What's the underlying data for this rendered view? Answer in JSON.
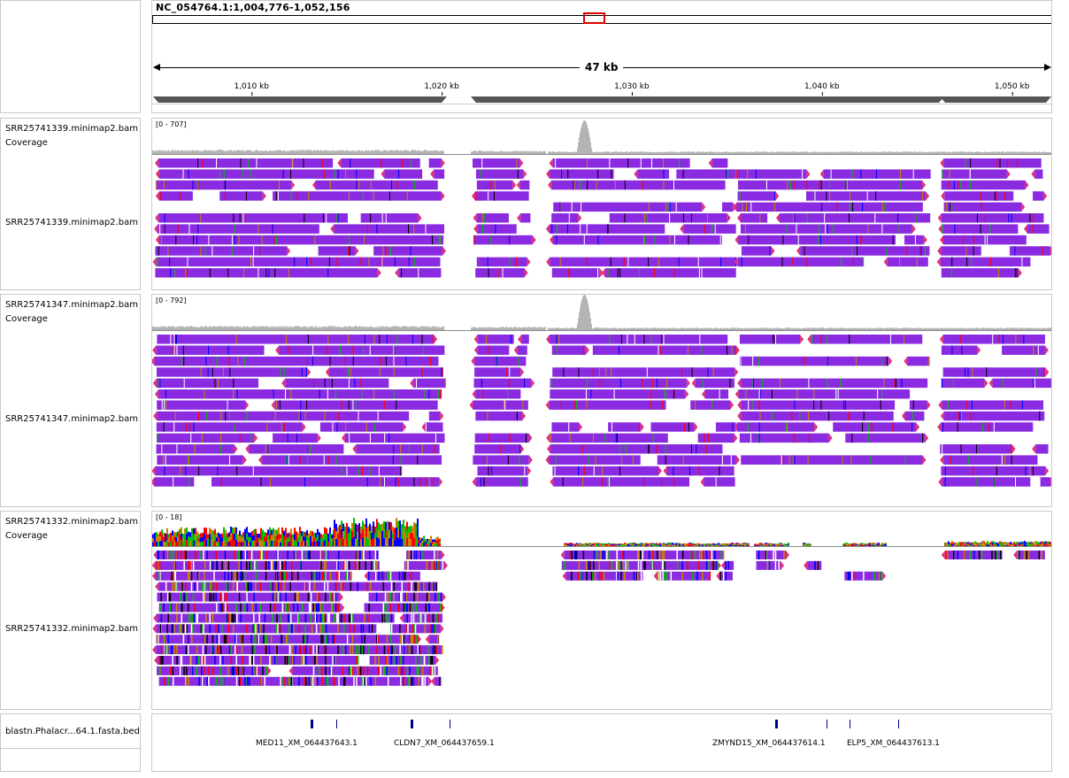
{
  "locus": "NC_054764.1:1,004,776-1,052,156",
  "span_label": "47 kb",
  "ruler_ticks": [
    {
      "label": "1,010 kb",
      "pos": 1010000
    },
    {
      "label": "1,020 kb",
      "pos": 1020000
    },
    {
      "label": "1,030 kb",
      "pos": 1030000
    },
    {
      "label": "1,040 kb",
      "pos": 1040000
    },
    {
      "label": "1,050 kb",
      "pos": 1050000
    }
  ],
  "view_start": 1004776,
  "view_end": 1052156,
  "tracks": [
    {
      "coverage_name": "SRR25741339.minimap2.bam Coverage",
      "alignment_name": "SRR25741339.minimap2.bam",
      "range": "[0 - 707]"
    },
    {
      "coverage_name": "SRR25741347.minimap2.bam Coverage",
      "alignment_name": "SRR25741347.minimap2.bam",
      "range": "[0 - 792]"
    },
    {
      "coverage_name": "SRR25741332.minimap2.bam Coverage",
      "alignment_name": "SRR25741332.minimap2.bam",
      "range": "[0 - 18]"
    }
  ],
  "bed_track": {
    "name": "blastn.Phalacr...64.1.fasta.bed",
    "features": [
      {
        "label": "MED11_XM_064437643.1"
      },
      {
        "label": "CLDN7_XM_064437659.1"
      },
      {
        "label": "ZMYND15_XM_064437614.1"
      },
      {
        "label": "ELP5_XM_064437613.1"
      }
    ]
  },
  "colors": {
    "read": "#8a2be2",
    "read_strand": "#e0307a",
    "coverage": "#b4b4b4",
    "region_box": "#e00000",
    "bed_feature": "#00008b",
    "mismatch_A": "#00c000",
    "mismatch_C": "#0000ff",
    "mismatch_G": "#d08000",
    "mismatch_T": "#ff0000"
  }
}
